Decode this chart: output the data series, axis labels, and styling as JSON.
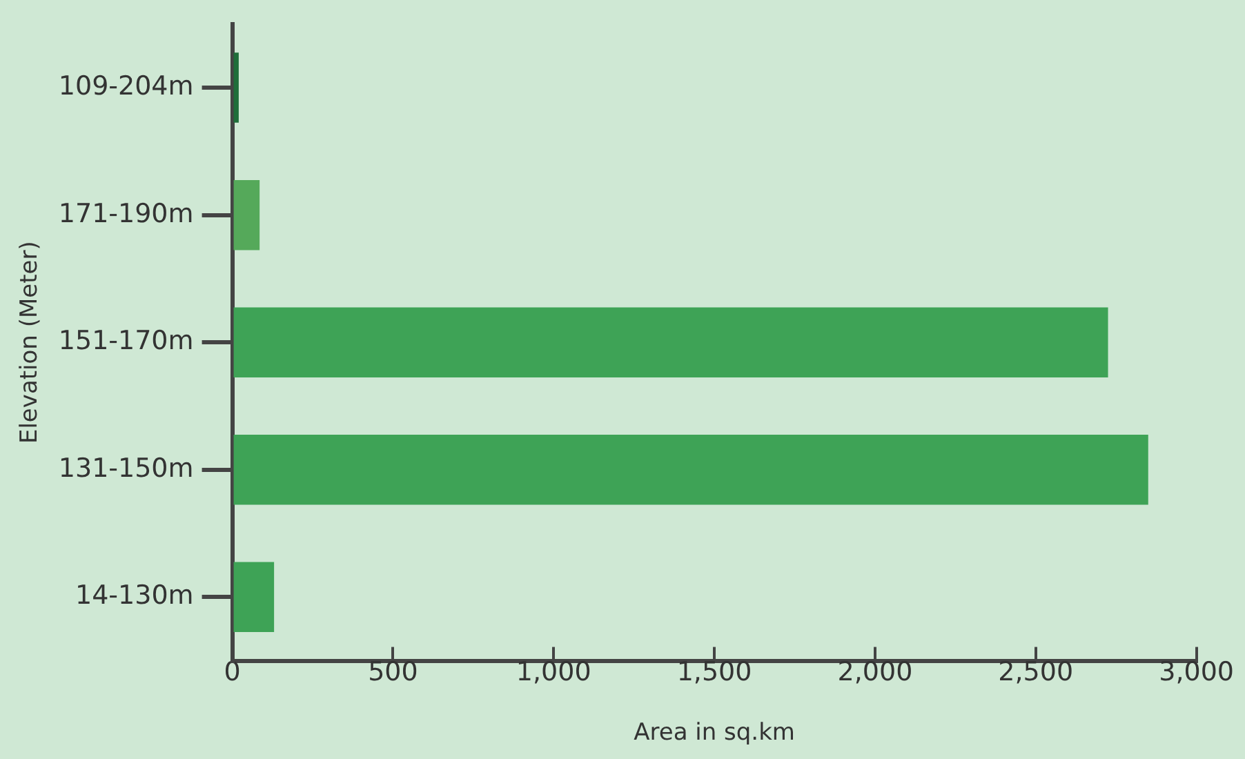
{
  "chart_data": {
    "type": "bar",
    "orientation": "horizontal",
    "xlabel": "Area in sq.km",
    "ylabel": "Elevation (Meter)",
    "categories": [
      "109-204m",
      "171-190m",
      "151-170m",
      "131-150m",
      "14-130m"
    ],
    "values": [
      20,
      85,
      2725,
      2850,
      130
    ],
    "colors": [
      "#1f6e3a",
      "#55a95a",
      "#3ea356",
      "#3ea356",
      "#3ea356"
    ],
    "xlim": [
      0,
      3000
    ],
    "xticks": [
      0,
      {
        "value": 500,
        "label": "500"
      },
      {
        "value": 1000,
        "label": "1,000"
      },
      {
        "value": 1500,
        "label": "1,500"
      },
      {
        "value": 2000,
        "label": "2,000"
      },
      {
        "value": 2500,
        "label": "2,500"
      },
      {
        "value": 3000,
        "label": "3,000"
      }
    ],
    "grid": false,
    "legend": false
  }
}
